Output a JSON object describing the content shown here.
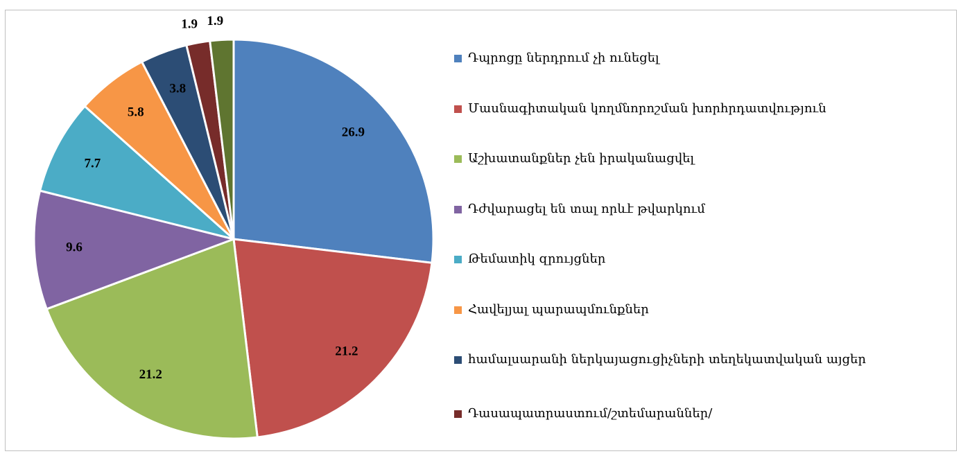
{
  "chart_data": {
    "type": "pie",
    "categories": [
      "Դպրոցը ներդրում չի ունեցել",
      "Մասնագիտական կողմնորոշման խորհրդատվություն",
      "Աշխատանքներ չեն իրականացվել",
      "Դժվարացել են տալ որևէ թվարկում",
      "Թեմատիկ զրույցներ",
      "Հավելյալ պարապմունքներ",
      "համալսարանի ներկայացուցիչների տեղեկատվական այցեր",
      "Դասապատրաստում/շտեմարաններ/",
      null
    ],
    "values": [
      26.9,
      21.2,
      21.2,
      9.6,
      7.7,
      5.8,
      3.8,
      1.9,
      1.9
    ],
    "colors": [
      "#4f81bd",
      "#c0504d",
      "#9bbb59",
      "#8064a2",
      "#4bacc6",
      "#f79646",
      "#2c4d75",
      "#772c2a",
      "#5f7530"
    ],
    "legend": "right"
  }
}
